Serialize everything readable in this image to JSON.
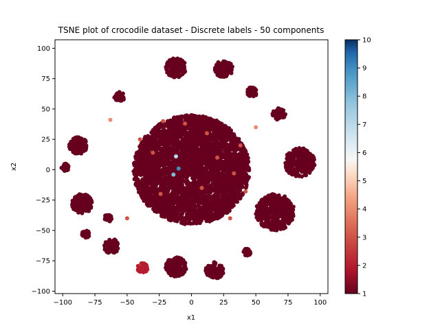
{
  "chart_data": {
    "type": "scatter",
    "title": "TSNE plot of crocodile dataset - Discrete labels - 50 components",
    "xlabel": "x1",
    "ylabel": "x2",
    "xlim": [
      -106,
      106
    ],
    "ylim": [
      -102,
      107
    ],
    "xticks": [
      -100,
      -75,
      -50,
      -25,
      0,
      25,
      50,
      75,
      100
    ],
    "yticks": [
      -100,
      -75,
      -50,
      -25,
      0,
      25,
      50,
      75,
      100
    ],
    "grid": false,
    "colormap": "RdBu",
    "colorbar": {
      "min": 1,
      "max": 10,
      "ticks": [
        1,
        2,
        3,
        4,
        5,
        6,
        7,
        8,
        9,
        10
      ]
    },
    "clusters": [
      {
        "x": -12,
        "y": 84,
        "r": 8,
        "label": 1
      },
      {
        "x": 25,
        "y": 83,
        "r": 7,
        "label": 1
      },
      {
        "x": 47,
        "y": 64,
        "r": 4,
        "label": 1
      },
      {
        "x": 68,
        "y": 46,
        "r": 5,
        "label": 1
      },
      {
        "x": 84,
        "y": 6,
        "r": 12,
        "label": 1
      },
      {
        "x": 65,
        "y": -35,
        "r": 15,
        "label": 1
      },
      {
        "x": -12,
        "y": -80,
        "r": 8,
        "label": 1
      },
      {
        "x": 18,
        "y": -83,
        "r": 7,
        "label": 1
      },
      {
        "x": 43,
        "y": -68,
        "r": 3,
        "label": 1
      },
      {
        "x": -38,
        "y": -81,
        "r": 4,
        "label": 2
      },
      {
        "x": -62,
        "y": -63,
        "r": 6,
        "label": 1
      },
      {
        "x": -85,
        "y": -28,
        "r": 8,
        "label": 1
      },
      {
        "x": -88,
        "y": 20,
        "r": 7,
        "label": 1
      },
      {
        "x": -98,
        "y": 2,
        "r": 3,
        "label": 1
      },
      {
        "x": -56,
        "y": 60,
        "r": 4,
        "label": 1
      },
      {
        "x": -82,
        "y": -53,
        "r": 3,
        "label": 1
      },
      {
        "x": -65,
        "y": -40,
        "r": 3,
        "label": 1
      },
      {
        "x": 0,
        "y": 0,
        "r": 45,
        "label": 1
      }
    ],
    "highlight_points": [
      {
        "x": -63,
        "y": 41,
        "label": 4
      },
      {
        "x": 50,
        "y": 35,
        "label": 4
      },
      {
        "x": -12,
        "y": 11,
        "label": 7
      },
      {
        "x": -14,
        "y": -4,
        "label": 8
      },
      {
        "x": -10,
        "y": 1,
        "label": 9
      },
      {
        "x": -5,
        "y": 38,
        "label": 3
      },
      {
        "x": -30,
        "y": 14,
        "label": 3
      },
      {
        "x": 33,
        "y": -3,
        "label": 3
      },
      {
        "x": 12,
        "y": 30,
        "label": 3
      },
      {
        "x": -24,
        "y": -20,
        "label": 3
      },
      {
        "x": 38,
        "y": 20,
        "label": 3
      },
      {
        "x": -40,
        "y": 25,
        "label": 3
      },
      {
        "x": 8,
        "y": -15,
        "label": 3
      },
      {
        "x": 42,
        "y": -18,
        "label": 3
      },
      {
        "x": -22,
        "y": 40,
        "label": 3
      },
      {
        "x": 20,
        "y": 10,
        "label": 3
      },
      {
        "x": -50,
        "y": -40,
        "label": 3
      },
      {
        "x": 30,
        "y": -40,
        "label": 3
      }
    ]
  }
}
